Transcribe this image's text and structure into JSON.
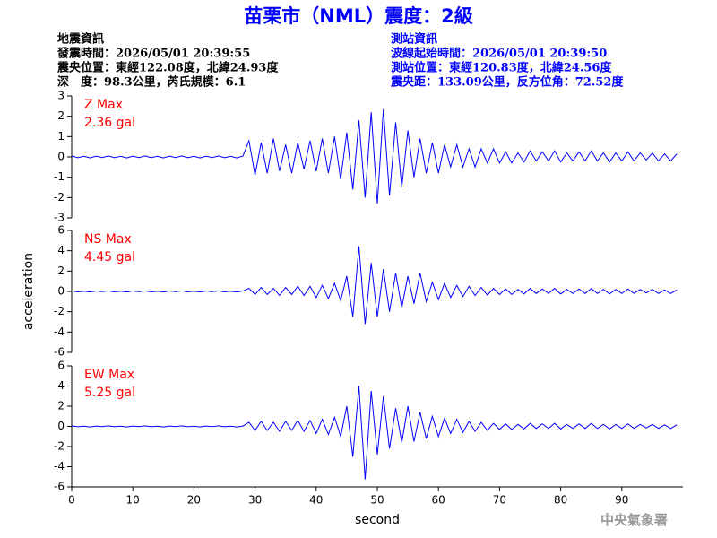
{
  "header": {
    "title": "苗栗市（NML）震度：2級",
    "left": [
      "地震資訊",
      "發震時間：2026/05/01 20:39:55",
      "震央位置：東經122.08度，北緯24.93度",
      "深　度：98.3公里，芮氏規模：6.1"
    ],
    "right": [
      "測站資訊",
      "波線起始時間：2026/05/01 20:39:50",
      "測站位置：東經120.83度，北緯24.56度",
      "震央距：133.09公里，反方位角：72.52度"
    ],
    "footer": "中央氣象署"
  },
  "chart_data": [
    {
      "type": "line",
      "title": "Z Max",
      "annotation": "2.36 gal",
      "color": "#0000ff",
      "xlim": [
        0,
        100
      ],
      "ylim": [
        -3,
        3
      ],
      "yticks": [
        -3,
        -2,
        -1,
        0,
        1,
        2,
        3
      ],
      "x": [
        0,
        1,
        2,
        3,
        4,
        5,
        6,
        7,
        8,
        9,
        10,
        11,
        12,
        13,
        14,
        15,
        16,
        17,
        18,
        19,
        20,
        21,
        22,
        23,
        24,
        25,
        26,
        27,
        28,
        29,
        30,
        31,
        32,
        33,
        34,
        35,
        36,
        37,
        38,
        39,
        40,
        41,
        42,
        43,
        44,
        45,
        46,
        47,
        48,
        49,
        50,
        51,
        52,
        53,
        54,
        55,
        56,
        57,
        58,
        59,
        60,
        61,
        62,
        63,
        64,
        65,
        66,
        67,
        68,
        69,
        70,
        71,
        72,
        73,
        74,
        75,
        76,
        77,
        78,
        79,
        80,
        81,
        82,
        83,
        84,
        85,
        86,
        87,
        88,
        89,
        90,
        91,
        92,
        93,
        94,
        95,
        96,
        97,
        98,
        99
      ],
      "values": [
        0.05,
        -0.04,
        0.03,
        -0.05,
        0.04,
        -0.03,
        0.05,
        -0.04,
        0.03,
        -0.05,
        0.04,
        -0.03,
        0.05,
        -0.04,
        0.03,
        -0.05,
        0.04,
        -0.03,
        0.05,
        -0.04,
        0.03,
        -0.05,
        0.04,
        -0.03,
        0.05,
        -0.04,
        0.03,
        -0.05,
        0.04,
        0.8,
        -0.9,
        0.7,
        -0.8,
        0.9,
        -0.7,
        0.6,
        -0.8,
        0.7,
        -0.6,
        0.8,
        -0.7,
        0.9,
        -0.8,
        1.0,
        -1.1,
        1.2,
        -1.6,
        1.8,
        -2.0,
        2.2,
        -2.3,
        2.36,
        -1.9,
        1.7,
        -1.5,
        1.3,
        -1.0,
        0.9,
        -0.8,
        0.7,
        -0.8,
        0.6,
        -0.5,
        0.6,
        -0.5,
        0.4,
        -0.5,
        0.4,
        -0.3,
        0.4,
        -0.3,
        0.25,
        -0.3,
        0.2,
        -0.25,
        0.3,
        -0.2,
        0.25,
        -0.2,
        0.3,
        -0.25,
        0.2,
        -0.2,
        0.25,
        -0.2,
        0.3,
        -0.2,
        0.2,
        -0.25,
        0.2,
        -0.2,
        0.25,
        -0.2,
        0.2,
        -0.15,
        0.2,
        -0.2,
        0.15,
        -0.2,
        0.15
      ]
    },
    {
      "type": "line",
      "title": "NS Max",
      "annotation": "4.45 gal",
      "ylabel": "acceleration",
      "color": "#0000ff",
      "xlim": [
        0,
        100
      ],
      "ylim": [
        -6,
        6
      ],
      "yticks": [
        -6,
        -4,
        -2,
        0,
        2,
        4,
        6
      ],
      "x": [
        0,
        1,
        2,
        3,
        4,
        5,
        6,
        7,
        8,
        9,
        10,
        11,
        12,
        13,
        14,
        15,
        16,
        17,
        18,
        19,
        20,
        21,
        22,
        23,
        24,
        25,
        26,
        27,
        28,
        29,
        30,
        31,
        32,
        33,
        34,
        35,
        36,
        37,
        38,
        39,
        40,
        41,
        42,
        43,
        44,
        45,
        46,
        47,
        48,
        49,
        50,
        51,
        52,
        53,
        54,
        55,
        56,
        57,
        58,
        59,
        60,
        61,
        62,
        63,
        64,
        65,
        66,
        67,
        68,
        69,
        70,
        71,
        72,
        73,
        74,
        75,
        76,
        77,
        78,
        79,
        80,
        81,
        82,
        83,
        84,
        85,
        86,
        87,
        88,
        89,
        90,
        91,
        92,
        93,
        94,
        95,
        96,
        97,
        98,
        99
      ],
      "values": [
        0.05,
        -0.04,
        0.03,
        -0.05,
        0.04,
        -0.03,
        0.05,
        -0.04,
        0.03,
        -0.05,
        0.04,
        -0.03,
        0.05,
        -0.04,
        0.03,
        -0.05,
        0.04,
        -0.03,
        0.05,
        -0.04,
        0.03,
        -0.05,
        0.04,
        -0.03,
        0.05,
        -0.04,
        0.03,
        -0.05,
        0.04,
        0.3,
        -0.3,
        0.4,
        -0.3,
        0.3,
        -0.4,
        0.4,
        -0.3,
        0.5,
        -0.4,
        0.5,
        -0.6,
        0.6,
        -0.7,
        0.8,
        -0.9,
        1.5,
        -2.5,
        4.45,
        -3.2,
        2.8,
        -2.5,
        2.2,
        -2.0,
        1.8,
        -1.6,
        1.5,
        -1.2,
        1.8,
        -1.0,
        0.9,
        -0.8,
        0.8,
        -0.6,
        0.6,
        -0.5,
        0.5,
        -0.4,
        0.4,
        -0.35,
        0.3,
        -0.3,
        0.25,
        -0.3,
        0.2,
        -0.25,
        0.3,
        -0.2,
        0.25,
        -0.2,
        0.3,
        -0.25,
        0.2,
        -0.2,
        0.25,
        -0.2,
        0.3,
        -0.2,
        0.2,
        -0.25,
        0.2,
        -0.2,
        0.25,
        -0.2,
        0.2,
        -0.15,
        0.2,
        -0.2,
        0.15,
        -0.2,
        0.15
      ]
    },
    {
      "type": "line",
      "title": "EW Max",
      "annotation": "5.25 gal",
      "xlabel": "second",
      "color": "#0000ff",
      "xlim": [
        0,
        100
      ],
      "ylim": [
        -6,
        6
      ],
      "yticks": [
        -6,
        -4,
        -2,
        0,
        2,
        4,
        6
      ],
      "xticks": [
        0,
        10,
        20,
        30,
        40,
        50,
        60,
        70,
        80,
        90
      ],
      "x": [
        0,
        1,
        2,
        3,
        4,
        5,
        6,
        7,
        8,
        9,
        10,
        11,
        12,
        13,
        14,
        15,
        16,
        17,
        18,
        19,
        20,
        21,
        22,
        23,
        24,
        25,
        26,
        27,
        28,
        29,
        30,
        31,
        32,
        33,
        34,
        35,
        36,
        37,
        38,
        39,
        40,
        41,
        42,
        43,
        44,
        45,
        46,
        47,
        48,
        49,
        50,
        51,
        52,
        53,
        54,
        55,
        56,
        57,
        58,
        59,
        60,
        61,
        62,
        63,
        64,
        65,
        66,
        67,
        68,
        69,
        70,
        71,
        72,
        73,
        74,
        75,
        76,
        77,
        78,
        79,
        80,
        81,
        82,
        83,
        84,
        85,
        86,
        87,
        88,
        89,
        90,
        91,
        92,
        93,
        94,
        95,
        96,
        97,
        98,
        99
      ],
      "values": [
        0.05,
        -0.04,
        0.03,
        -0.05,
        0.04,
        -0.03,
        0.05,
        -0.04,
        0.03,
        -0.05,
        0.04,
        -0.03,
        0.05,
        -0.04,
        0.03,
        -0.05,
        0.04,
        -0.03,
        0.05,
        -0.04,
        0.03,
        -0.05,
        0.04,
        -0.03,
        0.05,
        -0.04,
        0.03,
        -0.05,
        0.04,
        0.4,
        -0.4,
        0.5,
        -0.4,
        0.4,
        -0.5,
        0.5,
        -0.4,
        0.6,
        -0.5,
        0.6,
        -0.7,
        0.7,
        -0.8,
        0.9,
        -1.0,
        2.0,
        -3.0,
        4.0,
        -5.25,
        3.5,
        -2.8,
        3.0,
        -2.2,
        1.8,
        -1.6,
        2.0,
        -1.5,
        1.4,
        -1.2,
        1.0,
        -1.0,
        0.8,
        -0.7,
        0.7,
        -0.6,
        0.5,
        -0.5,
        0.4,
        -0.4,
        0.3,
        -0.3,
        0.25,
        -0.3,
        0.2,
        -0.25,
        0.3,
        -0.2,
        0.25,
        -0.2,
        0.3,
        -0.25,
        0.2,
        -0.2,
        0.25,
        -0.2,
        0.3,
        -0.2,
        0.2,
        -0.25,
        0.2,
        -0.2,
        0.25,
        -0.2,
        0.2,
        -0.15,
        0.2,
        -0.2,
        0.15,
        -0.2,
        0.15
      ]
    }
  ]
}
